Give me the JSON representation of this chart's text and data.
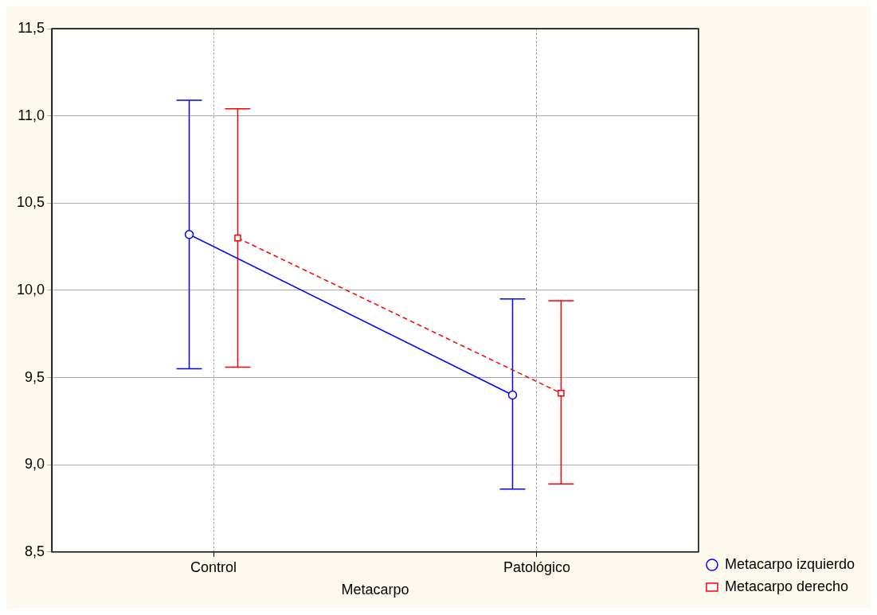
{
  "chart_data": {
    "type": "line",
    "xlabel": "Metacarpo",
    "categories": [
      "Control",
      "Patológico"
    ],
    "series": [
      {
        "name": "Metacarpo izquierdo",
        "color": "#0000ff",
        "values": [
          10.32,
          9.4
        ],
        "errors": [
          [
            9.55,
            11.09
          ],
          [
            8.86,
            9.95
          ]
        ],
        "marker": "circle",
        "line_style": "solid"
      },
      {
        "name": "Metacarpo derecho",
        "color": "#ff0000",
        "values": [
          10.3,
          9.41
        ],
        "errors": [
          [
            9.56,
            11.04
          ],
          [
            8.89,
            9.94
          ]
        ],
        "marker": "square",
        "line_style": "dashed"
      }
    ],
    "ylim": [
      8.5,
      11.5
    ],
    "yticks": [
      {
        "value": 8.5,
        "label": "8,5"
      },
      {
        "value": 9,
        "label": "9,0"
      },
      {
        "value": 9.5,
        "label": "9,5"
      },
      {
        "value": 10,
        "label": "10,0"
      },
      {
        "value": 10.5,
        "label": "10,5"
      },
      {
        "value": 11,
        "label": "11,0"
      },
      {
        "value": 11.5,
        "label": "11,5"
      }
    ],
    "grid": true,
    "legend": "bottom right"
  }
}
